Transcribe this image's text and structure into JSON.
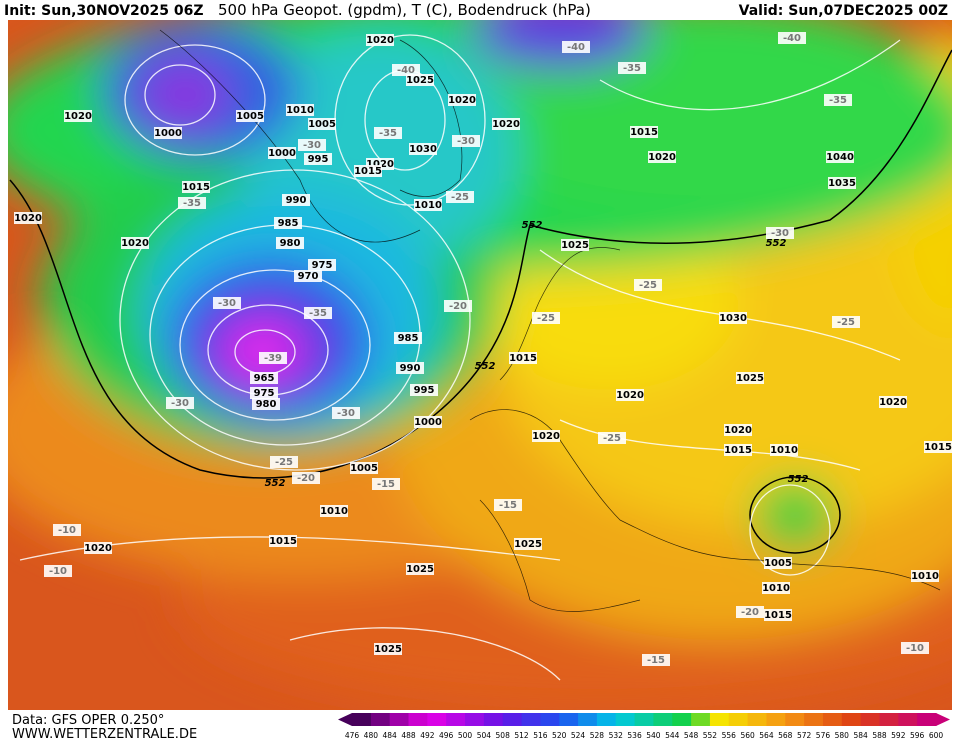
{
  "header": {
    "init": "Init: Sun,30NOV2025 06Z",
    "title": "500 hPa Geopot. (gpdm), T (C), Bodendruck (hPa)",
    "valid": "Valid: Sun,07DEC2025 00Z"
  },
  "footer": {
    "data": "Data: GFS OPER 0.250°",
    "site": "WWW.WETTERZENTRALE.DE"
  },
  "colorbar": {
    "labels": [
      476,
      480,
      484,
      488,
      492,
      496,
      500,
      504,
      508,
      512,
      516,
      520,
      524,
      528,
      532,
      536,
      540,
      544,
      548,
      552,
      556,
      560,
      564,
      568,
      572,
      576,
      580,
      584,
      588,
      592,
      596,
      600
    ]
  },
  "map": {
    "pressure_labels": [
      1020,
      1025,
      1020,
      1020,
      1005,
      1010,
      1005,
      1000,
      1000,
      995,
      1030,
      1020,
      1015,
      1015,
      1010,
      990,
      985,
      980,
      975,
      970,
      1020,
      1015,
      1020,
      1040,
      1035,
      1020,
      1020,
      1025,
      1030,
      985,
      990,
      965,
      975,
      980,
      995,
      1000,
      1015,
      1025,
      1020,
      1020,
      1020,
      1015,
      1010,
      1020,
      1015,
      1005,
      1010,
      1015,
      1020,
      1025,
      1025,
      1005,
      1010,
      1015,
      1010,
      1025
    ],
    "temperature_labels": [
      -40,
      -40,
      -35,
      -35,
      -30,
      -35,
      -30,
      -40,
      -35,
      -25,
      -30,
      -25,
      -25,
      -25,
      -30,
      -35,
      -39,
      -20,
      -30,
      -30,
      -25,
      -20,
      -15,
      -15,
      -25,
      -10,
      -10,
      -20,
      -15,
      -10
    ],
    "geopotential_labels": [
      552,
      552,
      552,
      552,
      552
    ]
  }
}
